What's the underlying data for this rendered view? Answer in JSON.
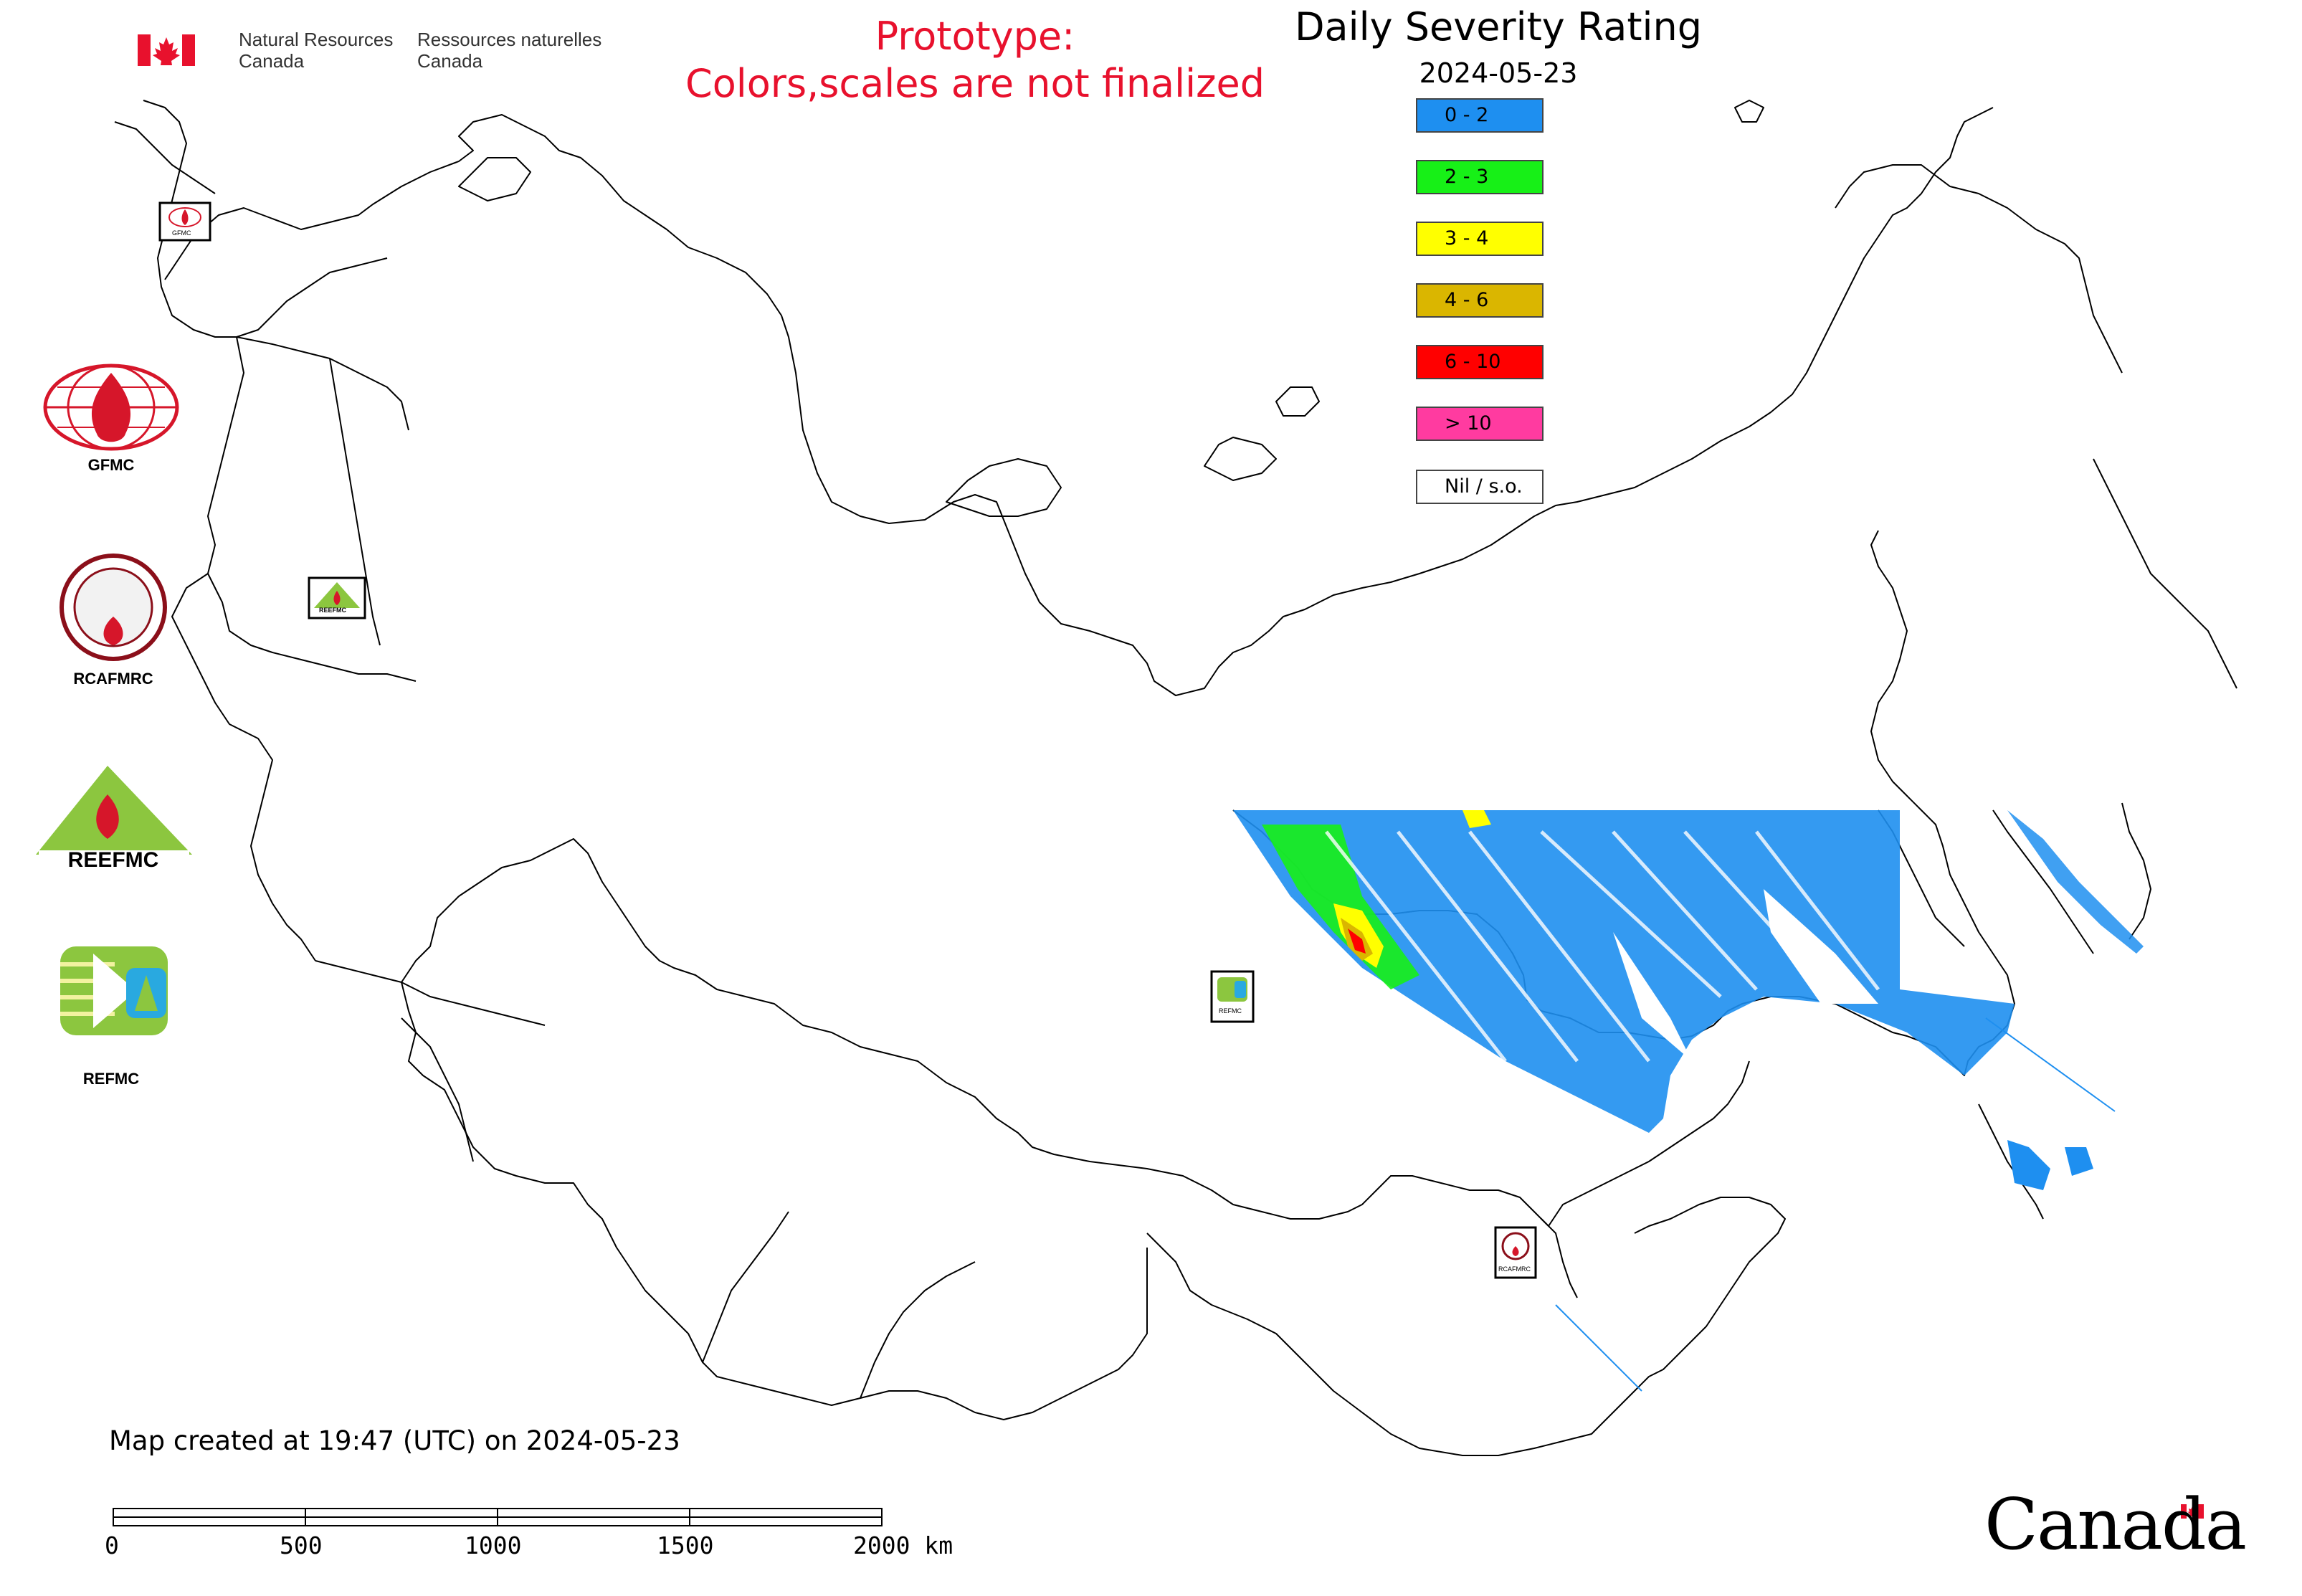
{
  "header": {
    "agency_en_line1": "Natural Resources",
    "agency_en_line2": "Canada",
    "agency_fr_line1": "Ressources naturelles",
    "agency_fr_line2": "Canada",
    "prototype_line1": "Prototype:",
    "prototype_line2": "Colors,scales are not finalized",
    "map_title": "Daily Severity Rating",
    "map_date": "2024-05-23"
  },
  "legend": {
    "items": [
      {
        "label": "0 - 2",
        "color": "#1e8ff0"
      },
      {
        "label": "2 - 3",
        "color": "#17f017"
      },
      {
        "label": "3 - 4",
        "color": "#ffff00"
      },
      {
        "label": "4 - 6",
        "color": "#dab600"
      },
      {
        "label": "6 - 10",
        "color": "#ff0000"
      },
      {
        "label": "> 10",
        "color": "#ff3ba0"
      },
      {
        "label": "Nil / s.o.",
        "color": "#ffffff"
      }
    ]
  },
  "organizations": {
    "gfmc_label": "GFMC",
    "rcafmrc_label": "RCAFMRC",
    "reefmc_logo_text": "REEFMC",
    "refmc_label": "REFMC",
    "marker_gfmc": "GFMC",
    "marker_reefmc": "REEFMC",
    "marker_refmc": "REFMC",
    "marker_rcafmrc": "RCAFMRC"
  },
  "footer": {
    "created_text": "Map created at 19:47 (UTC) on 2024-05-23",
    "scale_labels": [
      "0",
      "500",
      "1000",
      "1500",
      "2000 km"
    ],
    "canada_wordmark": "Canada"
  }
}
